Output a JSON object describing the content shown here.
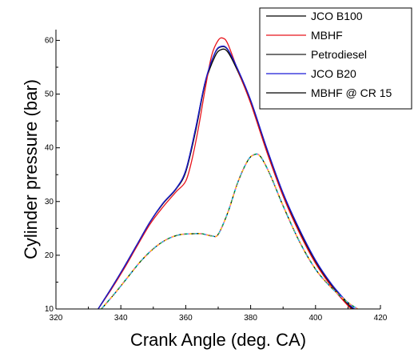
{
  "chart_data": {
    "type": "line",
    "title": "",
    "xlabel": "Crank Angle (deg. CA)",
    "ylabel": "Cylinder pressure (bar)",
    "xlim": [
      320,
      420
    ],
    "ylim": [
      10,
      62
    ],
    "xticks": [
      320,
      340,
      360,
      380,
      400,
      420
    ],
    "yticks": [
      10,
      20,
      30,
      40,
      50,
      60
    ],
    "grid": false,
    "legend_position": "top-right",
    "series": [
      {
        "name": "JCO B100",
        "color": "#000000",
        "dash": "solid",
        "points": [
          [
            333,
            10
          ],
          [
            337,
            13.8
          ],
          [
            341,
            17.8
          ],
          [
            345,
            22
          ],
          [
            349,
            26.2
          ],
          [
            353,
            29.6
          ],
          [
            357,
            32.3
          ],
          [
            360,
            35.5
          ],
          [
            363,
            43
          ],
          [
            366,
            52
          ],
          [
            369,
            57
          ],
          [
            371,
            58.3
          ],
          [
            373,
            57.8
          ],
          [
            376,
            54.3
          ],
          [
            380,
            48.5
          ],
          [
            385,
            39.5
          ],
          [
            390,
            31.2
          ],
          [
            395,
            24.5
          ],
          [
            400,
            18.8
          ],
          [
            405,
            14.3
          ],
          [
            410,
            10.8
          ],
          [
            411.5,
            10
          ]
        ]
      },
      {
        "name": "MBHF",
        "color": "#e8141c",
        "dash": "solid",
        "points": [
          [
            333,
            10
          ],
          [
            337,
            13.6
          ],
          [
            341,
            17.5
          ],
          [
            345,
            21.7
          ],
          [
            349,
            25.8
          ],
          [
            353,
            29
          ],
          [
            357,
            31.8
          ],
          [
            360,
            33.8
          ],
          [
            362,
            38
          ],
          [
            364,
            44
          ],
          [
            366,
            51
          ],
          [
            368,
            57.2
          ],
          [
            370,
            60
          ],
          [
            371.5,
            60.4
          ],
          [
            373,
            59.3
          ],
          [
            376,
            54.5
          ],
          [
            380,
            48.3
          ],
          [
            385,
            39.2
          ],
          [
            390,
            31
          ],
          [
            395,
            24.2
          ],
          [
            400,
            18.5
          ],
          [
            405,
            14.1
          ],
          [
            410,
            10.6
          ],
          [
            411.2,
            10
          ]
        ]
      },
      {
        "name": "Petrodiesel",
        "color": "#222222",
        "dash": "solid",
        "points": [
          [
            333,
            10
          ],
          [
            337,
            13.8
          ],
          [
            341,
            17.8
          ],
          [
            345,
            22
          ],
          [
            349,
            26.2
          ],
          [
            353,
            29.7
          ],
          [
            357,
            32.4
          ],
          [
            360,
            35.8
          ],
          [
            363,
            43.5
          ],
          [
            366,
            52.3
          ],
          [
            369,
            57.6
          ],
          [
            371,
            58.8
          ],
          [
            373,
            58.2
          ],
          [
            376,
            54.6
          ],
          [
            380,
            48.8
          ],
          [
            385,
            39.8
          ],
          [
            390,
            31.5
          ],
          [
            395,
            24.8
          ],
          [
            400,
            19
          ],
          [
            405,
            14.5
          ],
          [
            410,
            11
          ],
          [
            411.8,
            10
          ]
        ]
      },
      {
        "name": "JCO B20",
        "color": "#1a1ad6",
        "dash": "solid",
        "points": [
          [
            333,
            10
          ],
          [
            337,
            13.8
          ],
          [
            341,
            17.8
          ],
          [
            345,
            22
          ],
          [
            349,
            26.2
          ],
          [
            353,
            29.7
          ],
          [
            357,
            32.4
          ],
          [
            360,
            35.8
          ],
          [
            363,
            43.5
          ],
          [
            366,
            52.3
          ],
          [
            369,
            57.7
          ],
          [
            371,
            58.9
          ],
          [
            373,
            58.3
          ],
          [
            376,
            54.7
          ],
          [
            380,
            48.9
          ],
          [
            385,
            39.9
          ],
          [
            390,
            31.6
          ],
          [
            395,
            24.9
          ],
          [
            400,
            19.1
          ],
          [
            405,
            14.6
          ],
          [
            410,
            11.1
          ],
          [
            412,
            10
          ]
        ]
      },
      {
        "name": "MBHF @ CR 15",
        "color": "#000000",
        "dash": "solid",
        "points": [
          [
            334,
            10
          ],
          [
            338,
            12.8
          ],
          [
            342,
            15.8
          ],
          [
            346,
            18.8
          ],
          [
            350,
            21.2
          ],
          [
            354,
            22.9
          ],
          [
            358,
            23.8
          ],
          [
            362,
            24
          ],
          [
            365,
            24
          ],
          [
            368,
            23.6
          ],
          [
            370,
            23.9
          ],
          [
            373,
            28
          ],
          [
            376,
            33.5
          ],
          [
            379,
            37.5
          ],
          [
            381,
            38.7
          ],
          [
            383,
            38.4
          ],
          [
            386,
            35
          ],
          [
            390,
            29.2
          ],
          [
            395,
            22.6
          ],
          [
            400,
            17.4
          ],
          [
            405,
            13.9
          ],
          [
            410,
            11.2
          ],
          [
            413,
            10
          ]
        ]
      },
      {
        "name": "",
        "color": "#ff69b4",
        "dash": "4,3",
        "points": [
          [
            334,
            10
          ],
          [
            338,
            12.8
          ],
          [
            342,
            15.8
          ],
          [
            346,
            18.8
          ],
          [
            350,
            21.2
          ],
          [
            354,
            22.9
          ],
          [
            358,
            23.8
          ],
          [
            362,
            24
          ],
          [
            365,
            24
          ],
          [
            368,
            23.6
          ],
          [
            370,
            23.9
          ],
          [
            373,
            28
          ],
          [
            376,
            33.5
          ],
          [
            379,
            37.5
          ],
          [
            381,
            38.7
          ],
          [
            383,
            38.4
          ],
          [
            386,
            35
          ],
          [
            390,
            29.2
          ],
          [
            395,
            22.6
          ],
          [
            400,
            17.4
          ],
          [
            405,
            13.9
          ],
          [
            410,
            11.2
          ],
          [
            413,
            10
          ]
        ]
      },
      {
        "name": "",
        "color": "#20c040",
        "dash": "2,9",
        "points": [
          [
            334,
            10
          ],
          [
            338,
            12.8
          ],
          [
            342,
            15.8
          ],
          [
            346,
            18.8
          ],
          [
            350,
            21.2
          ],
          [
            354,
            22.9
          ],
          [
            358,
            23.8
          ],
          [
            362,
            24
          ],
          [
            365,
            24
          ],
          [
            368,
            23.6
          ],
          [
            370,
            23.9
          ],
          [
            373,
            28
          ],
          [
            376,
            33.5
          ],
          [
            379,
            37.5
          ],
          [
            381,
            38.7
          ],
          [
            383,
            38.4
          ],
          [
            386,
            35
          ],
          [
            390,
            29.2
          ],
          [
            395,
            22.6
          ],
          [
            400,
            17.4
          ],
          [
            405,
            13.9
          ],
          [
            410,
            11.2
          ],
          [
            413,
            10
          ]
        ]
      },
      {
        "name": "",
        "color": "#ffd700",
        "dash": "2,9",
        "offset": 4,
        "points": [
          [
            334,
            10
          ],
          [
            338,
            12.8
          ],
          [
            342,
            15.8
          ],
          [
            346,
            18.8
          ],
          [
            350,
            21.2
          ],
          [
            354,
            22.9
          ],
          [
            358,
            23.8
          ],
          [
            362,
            24
          ],
          [
            365,
            24
          ],
          [
            368,
            23.6
          ],
          [
            370,
            23.9
          ],
          [
            373,
            28
          ],
          [
            376,
            33.5
          ],
          [
            379,
            37.5
          ],
          [
            381,
            38.7
          ],
          [
            383,
            38.4
          ],
          [
            386,
            35
          ],
          [
            390,
            29.2
          ],
          [
            395,
            22.6
          ],
          [
            400,
            17.4
          ],
          [
            405,
            13.9
          ],
          [
            410,
            11.2
          ],
          [
            413,
            10
          ]
        ]
      },
      {
        "name": "",
        "color": "#00d0e0",
        "dash": "2,9",
        "offset": 8,
        "points": [
          [
            334,
            10
          ],
          [
            338,
            12.8
          ],
          [
            342,
            15.8
          ],
          [
            346,
            18.8
          ],
          [
            350,
            21.2
          ],
          [
            354,
            22.9
          ],
          [
            358,
            23.8
          ],
          [
            362,
            24
          ],
          [
            365,
            24
          ],
          [
            368,
            23.6
          ],
          [
            370,
            23.9
          ],
          [
            373,
            28
          ],
          [
            376,
            33.5
          ],
          [
            379,
            37.5
          ],
          [
            381,
            38.7
          ],
          [
            383,
            38.4
          ],
          [
            386,
            35
          ],
          [
            390,
            29.2
          ],
          [
            395,
            22.6
          ],
          [
            400,
            17.4
          ],
          [
            405,
            13.9
          ],
          [
            410,
            11.2
          ],
          [
            413,
            10
          ]
        ]
      }
    ],
    "legend": [
      {
        "label": "JCO B100",
        "color": "#000000"
      },
      {
        "label": "MBHF",
        "color": "#e8141c"
      },
      {
        "label": "Petrodiesel",
        "color": "#222222"
      },
      {
        "label": "JCO B20",
        "color": "#1a1ad6"
      },
      {
        "label": "MBHF @ CR 15",
        "color": "#000000"
      }
    ]
  }
}
